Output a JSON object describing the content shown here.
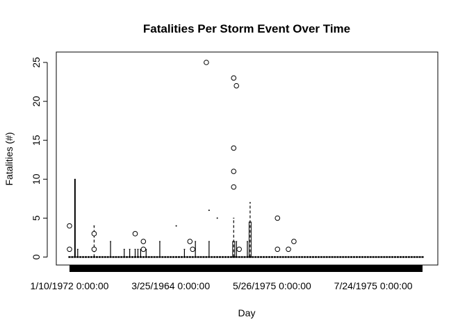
{
  "chart_data": {
    "type": "boxplot",
    "title": "Fatalities Per Storm Event Over Time",
    "xlabel": "Day",
    "ylabel": "Fatalities (#)",
    "ylim": [
      0,
      25
    ],
    "y_ticks": [
      0,
      5,
      10,
      15,
      20,
      25
    ],
    "x_tick_labels": [
      "1/10/1972 0:00:00",
      "3/25/1964 0:00:00",
      "5/26/1975 0:00:00",
      "7/24/1975 0:00:00"
    ],
    "x_tick_positions": [
      1,
      38,
      75,
      112
    ],
    "n_groups": 130,
    "baseline_value": 0,
    "whiskers": [
      {
        "x": 3,
        "upper": 10
      },
      {
        "x": 4,
        "upper": 1
      },
      {
        "x": 10,
        "upper": 4,
        "dashed": true
      },
      {
        "x": 16,
        "upper": 2
      },
      {
        "x": 21,
        "upper": 1
      },
      {
        "x": 23,
        "upper": 1
      },
      {
        "x": 25,
        "upper": 1
      },
      {
        "x": 26,
        "upper": 1
      },
      {
        "x": 27,
        "upper": 1
      },
      {
        "x": 29,
        "upper": 1
      },
      {
        "x": 34,
        "upper": 2
      },
      {
        "x": 43,
        "upper": 1
      },
      {
        "x": 47,
        "upper": 2
      },
      {
        "x": 52,
        "upper": 2
      },
      {
        "x": 61,
        "upper": 5,
        "dashed": true
      },
      {
        "x": 62,
        "upper": 2
      },
      {
        "x": 66,
        "upper": 2
      },
      {
        "x": 67,
        "upper": 7,
        "dashed": true
      }
    ],
    "boxes": [
      {
        "x": 61,
        "q1": 0,
        "q3": 2,
        "median": 0
      },
      {
        "x": 67,
        "q1": 0,
        "q3": 4.5,
        "median": 0
      }
    ],
    "outliers": [
      {
        "x": 1,
        "y": 1
      },
      {
        "x": 1,
        "y": 4
      },
      {
        "x": 10,
        "y": 1
      },
      {
        "x": 10,
        "y": 3
      },
      {
        "x": 25,
        "y": 3
      },
      {
        "x": 28,
        "y": 1
      },
      {
        "x": 28,
        "y": 2
      },
      {
        "x": 45,
        "y": 2
      },
      {
        "x": 46,
        "y": 1
      },
      {
        "x": 51,
        "y": 25
      },
      {
        "x": 61,
        "y": 23
      },
      {
        "x": 61,
        "y": 14
      },
      {
        "x": 61,
        "y": 11
      },
      {
        "x": 61,
        "y": 9
      },
      {
        "x": 62,
        "y": 22
      },
      {
        "x": 63,
        "y": 1
      },
      {
        "x": 77,
        "y": 5
      },
      {
        "x": 77,
        "y": 1
      },
      {
        "x": 81,
        "y": 1
      },
      {
        "x": 83,
        "y": 2
      }
    ],
    "dots": [
      {
        "x": 40,
        "y": 4
      },
      {
        "x": 52,
        "y": 6
      },
      {
        "x": 55,
        "y": 5
      }
    ]
  }
}
